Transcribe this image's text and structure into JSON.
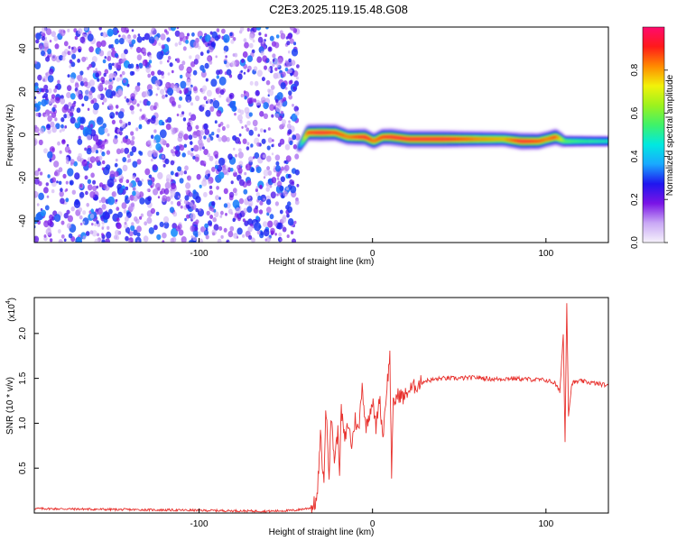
{
  "title": "C2E3.2025.119.15.48.G08",
  "chart_data": [
    {
      "type": "heatmap",
      "xlabel": "Height of straight line (km)",
      "ylabel": "Frequency (Hz)",
      "xlim": [
        -195,
        136
      ],
      "ylim": [
        -50,
        50
      ],
      "xticks": [
        -100,
        0,
        100
      ],
      "yticks": [
        -40,
        -20,
        0,
        20,
        40
      ],
      "colorbar": {
        "label": "Normalized spectral amplitude",
        "range": [
          0.0,
          1.0
        ],
        "ticks": [
          "0.0",
          "0.2",
          "0.4",
          "0.6",
          "0.8"
        ],
        "tick_values": [
          0.0,
          0.2,
          0.4,
          0.6,
          0.8
        ],
        "colors": [
          "#f6f2fb",
          "#c9a8f5",
          "#7a14e6",
          "#1f16ef",
          "#1aa8ff",
          "#00e9e0",
          "#3ef26a",
          "#9cf21e",
          "#f2f20a",
          "#ff8a00",
          "#ff1a1a",
          "#ff0a6e"
        ]
      },
      "noise_region_x": [
        -195,
        -43
      ],
      "signal_track": {
        "x": [
          -43,
          -38,
          -30,
          -22,
          -15,
          -10,
          -5,
          0,
          5,
          10,
          20,
          40,
          60,
          75,
          85,
          95,
          100,
          105,
          110,
          120,
          136
        ],
        "freq_hz": [
          -6,
          1,
          1,
          1,
          -1,
          -1,
          -1,
          -3,
          -1,
          -1,
          -2,
          -2,
          -2,
          -2,
          -3,
          -3,
          -2,
          -1,
          -3,
          -3,
          -3
        ],
        "amplitude": [
          0.35,
          0.9,
          0.95,
          0.9,
          0.85,
          0.9,
          0.95,
          0.85,
          0.9,
          0.95,
          0.95,
          0.95,
          0.85,
          0.8,
          0.95,
          0.9,
          0.85,
          0.9,
          0.6,
          0.55,
          0.5
        ]
      }
    },
    {
      "type": "line",
      "xlabel": "Height of straight line (km)",
      "ylabel": "SNR (10 * v/v)",
      "y_multiplier": "(x10",
      "y_multiplier_exp": "4",
      "xlim": [
        -195,
        136
      ],
      "ylim": [
        0,
        2.4
      ],
      "xticks": [
        -100,
        0,
        100
      ],
      "yticks": [
        0.5,
        1.0,
        1.5,
        2.0
      ],
      "ytick_labels": [
        "0.5",
        "1.0",
        "1.5",
        "2.0"
      ],
      "series": [
        {
          "color": "#e8322e",
          "x": [
            -195,
            -150,
            -100,
            -60,
            -45,
            -35,
            -32,
            -30,
            -28,
            -27,
            -25,
            -24,
            -22,
            -20,
            -19,
            -18,
            -16,
            -14,
            -12,
            -10,
            -8,
            -6,
            -4,
            -2,
            0,
            2,
            4,
            6,
            8,
            10,
            11,
            12,
            14,
            16,
            18,
            20,
            25,
            30,
            40,
            50,
            60,
            70,
            80,
            90,
            100,
            105,
            108,
            110,
            111,
            112,
            113,
            115,
            120,
            130,
            136
          ],
          "y": [
            0.05,
            0.04,
            0.03,
            0.02,
            0.03,
            0.06,
            0.15,
            0.85,
            0.3,
            1.2,
            0.45,
            1.1,
            0.6,
            0.9,
            0.5,
            1.15,
            0.8,
            1.0,
            0.75,
            1.05,
            0.9,
            1.45,
            0.95,
            1.1,
            1.25,
            0.95,
            1.3,
            0.85,
            1.35,
            1.75,
            0.45,
            1.2,
            1.3,
            1.32,
            1.28,
            1.35,
            1.42,
            1.47,
            1.5,
            1.5,
            1.51,
            1.49,
            1.5,
            1.49,
            1.48,
            1.45,
            1.35,
            2.0,
            0.8,
            2.35,
            1.1,
            1.45,
            1.47,
            1.44,
            1.42
          ]
        }
      ]
    }
  ]
}
